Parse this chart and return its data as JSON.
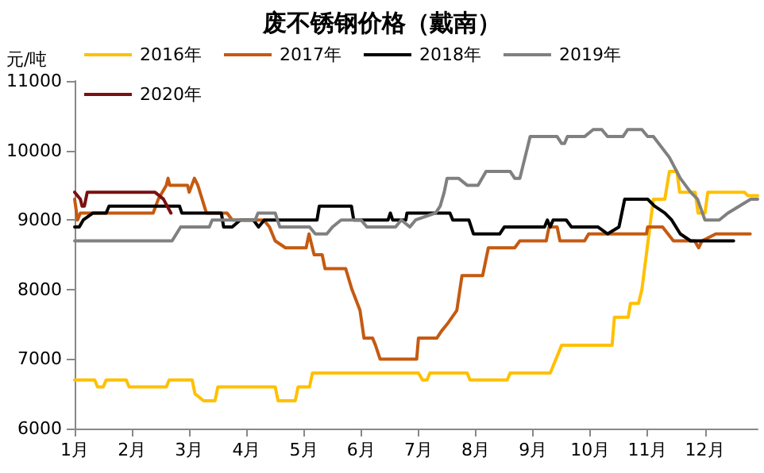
{
  "chart_data": {
    "type": "line",
    "title": "废不锈钢价格（戴南）",
    "ylabel": "元/吨",
    "legend": "top",
    "grid": false,
    "marker": "none",
    "line_style": "solid",
    "xlim": [
      1,
      12.92
    ],
    "xticks": [
      {
        "value": 1,
        "label": "1月"
      },
      {
        "value": 2,
        "label": "2月"
      },
      {
        "value": 3,
        "label": "3月"
      },
      {
        "value": 4,
        "label": "4月"
      },
      {
        "value": 5,
        "label": "5月"
      },
      {
        "value": 6,
        "label": "6月"
      },
      {
        "value": 7,
        "label": "7月"
      },
      {
        "value": 8,
        "label": "8月"
      },
      {
        "value": 9,
        "label": "9月"
      },
      {
        "value": 10,
        "label": "10月"
      },
      {
        "value": 11,
        "label": "11月"
      },
      {
        "value": 12,
        "label": "12月"
      }
    ],
    "ylim": [
      6000,
      11000
    ],
    "yticks": [
      6000,
      7000,
      8000,
      9000,
      10000,
      11000
    ],
    "series": [
      {
        "name": "2016年",
        "color": "#ffc000",
        "x": [
          1.0,
          1.35,
          1.4,
          1.5,
          1.55,
          1.9,
          1.95,
          2.6,
          2.65,
          3.05,
          3.1,
          3.25,
          3.45,
          3.5,
          4.5,
          4.55,
          4.85,
          4.9,
          5.1,
          5.15,
          7.0,
          7.07,
          7.15,
          7.2,
          7.85,
          7.9,
          8.55,
          8.6,
          9.3,
          9.35,
          9.5,
          10.38,
          10.42,
          10.66,
          10.7,
          10.84,
          10.9,
          11.1,
          11.3,
          11.38,
          11.51,
          11.56,
          11.83,
          11.88,
          12.0,
          12.05,
          12.69,
          12.75,
          12.92
        ],
        "values": [
          6700,
          6700,
          6600,
          6600,
          6700,
          6700,
          6600,
          6600,
          6700,
          6700,
          6500,
          6400,
          6400,
          6600,
          6600,
          6400,
          6400,
          6600,
          6600,
          6800,
          6800,
          6700,
          6700,
          6800,
          6800,
          6700,
          6700,
          6800,
          6800,
          6900,
          7200,
          7200,
          7600,
          7600,
          7800,
          7800,
          8000,
          9300,
          9300,
          9700,
          9700,
          9400,
          9400,
          9100,
          9100,
          9400,
          9400,
          9350,
          9350
        ]
      },
      {
        "name": "2017年",
        "color": "#c55a11",
        "x": [
          1.0,
          1.05,
          1.1,
          2.37,
          2.46,
          2.6,
          2.63,
          2.66,
          2.97,
          3.0,
          3.09,
          3.15,
          3.3,
          3.66,
          3.75,
          4.3,
          4.4,
          4.5,
          4.68,
          5.04,
          5.09,
          5.18,
          5.32,
          5.37,
          5.73,
          5.84,
          5.98,
          6.05,
          6.2,
          6.25,
          6.33,
          6.97,
          7.0,
          7.32,
          7.4,
          7.5,
          7.67,
          7.76,
          8.12,
          8.22,
          8.68,
          8.77,
          9.23,
          9.28,
          9.42,
          9.47,
          9.9,
          9.97,
          10.98,
          11.0,
          11.26,
          11.45,
          11.82,
          11.89,
          11.95,
          12.19,
          12.79
        ],
        "values": [
          9300,
          9000,
          9100,
          9100,
          9300,
          9500,
          9600,
          9500,
          9500,
          9400,
          9600,
          9500,
          9100,
          9100,
          9000,
          9000,
          8900,
          8700,
          8600,
          8600,
          8800,
          8500,
          8500,
          8300,
          8300,
          8000,
          7700,
          7300,
          7300,
          7200,
          7000,
          7000,
          7300,
          7300,
          7400,
          7500,
          7700,
          8200,
          8200,
          8600,
          8600,
          8700,
          8700,
          8900,
          8900,
          8700,
          8700,
          8800,
          8800,
          8900,
          8900,
          8700,
          8700,
          8600,
          8700,
          8800,
          8800
        ]
      },
      {
        "name": "2018年",
        "color": "#000000",
        "x": [
          1.0,
          1.08,
          1.15,
          1.32,
          1.55,
          1.6,
          2.83,
          2.87,
          3.56,
          3.6,
          3.75,
          3.89,
          4.12,
          4.21,
          4.31,
          5.23,
          5.27,
          5.83,
          5.87,
          6.47,
          6.51,
          6.55,
          6.78,
          6.8,
          7.55,
          7.6,
          7.88,
          7.96,
          8.42,
          8.5,
          9.2,
          9.25,
          9.3,
          9.35,
          9.58,
          9.67,
          10.13,
          10.3,
          10.5,
          10.6,
          11.0,
          11.12,
          11.3,
          11.42,
          11.57,
          11.75,
          12.5
        ],
        "values": [
          8900,
          8900,
          9000,
          9100,
          9100,
          9200,
          9200,
          9100,
          9100,
          8900,
          8900,
          9000,
          9000,
          8900,
          9000,
          9000,
          9200,
          9200,
          9000,
          9000,
          9100,
          9000,
          9000,
          9100,
          9100,
          9000,
          9000,
          8800,
          8800,
          8900,
          8900,
          9000,
          8900,
          9000,
          9000,
          8900,
          8900,
          8800,
          8900,
          9300,
          9300,
          9200,
          9100,
          9000,
          8800,
          8700,
          8700
        ]
      },
      {
        "name": "2019年",
        "color": "#808080",
        "x": [
          1.0,
          2.7,
          2.85,
          3.35,
          3.4,
          4.15,
          4.2,
          4.5,
          4.58,
          5.1,
          5.2,
          5.4,
          5.5,
          5.65,
          6.0,
          6.1,
          6.6,
          6.7,
          6.85,
          6.95,
          7.3,
          7.38,
          7.45,
          7.5,
          7.7,
          7.85,
          8.04,
          8.18,
          8.6,
          8.68,
          8.77,
          8.86,
          8.95,
          9.42,
          9.5,
          9.55,
          9.6,
          9.9,
          10.05,
          10.2,
          10.3,
          10.57,
          10.65,
          10.9,
          11.0,
          11.1,
          11.38,
          11.57,
          11.75,
          11.87,
          12.0,
          12.25,
          12.4,
          12.6,
          12.8,
          12.92
        ],
        "values": [
          8700,
          8700,
          8900,
          8900,
          9000,
          9000,
          9100,
          9100,
          8900,
          8900,
          8800,
          8800,
          8900,
          9000,
          9000,
          8900,
          8900,
          9000,
          8900,
          9000,
          9100,
          9200,
          9400,
          9600,
          9600,
          9500,
          9500,
          9700,
          9700,
          9600,
          9600,
          9900,
          10200,
          10200,
          10100,
          10100,
          10200,
          10200,
          10300,
          10300,
          10200,
          10200,
          10300,
          10300,
          10200,
          10200,
          9900,
          9600,
          9400,
          9300,
          9000,
          9000,
          9100,
          9200,
          9300,
          9300
        ]
      },
      {
        "name": "2020年",
        "color": "#7b1010",
        "x": [
          1.0,
          1.1,
          1.13,
          1.17,
          1.22,
          2.4,
          2.55,
          2.68
        ],
        "values": [
          9400,
          9300,
          9200,
          9200,
          9400,
          9400,
          9300,
          9100
        ]
      }
    ]
  }
}
